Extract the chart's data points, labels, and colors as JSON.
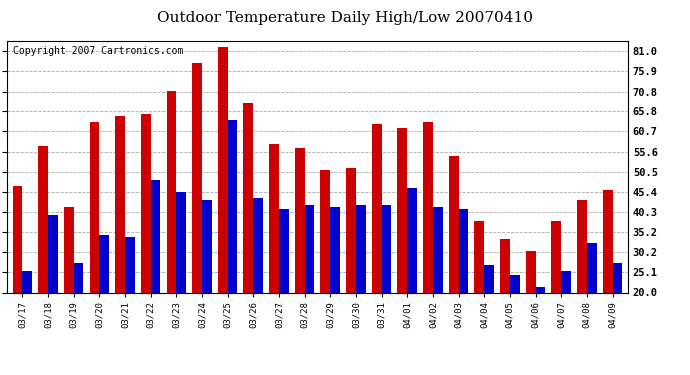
{
  "title": "Outdoor Temperature Daily High/Low 20070410",
  "copyright": "Copyright 2007 Cartronics.com",
  "categories": [
    "03/17",
    "03/18",
    "03/19",
    "03/20",
    "03/21",
    "03/22",
    "03/23",
    "03/24",
    "03/25",
    "03/26",
    "03/27",
    "03/28",
    "03/29",
    "03/30",
    "03/31",
    "04/01",
    "04/02",
    "04/03",
    "04/04",
    "04/05",
    "04/06",
    "04/07",
    "04/08",
    "04/09"
  ],
  "highs": [
    47.0,
    57.0,
    41.5,
    63.0,
    64.5,
    65.0,
    71.0,
    78.0,
    82.0,
    68.0,
    57.5,
    56.5,
    51.0,
    51.5,
    62.5,
    61.5,
    63.0,
    54.5,
    38.0,
    33.5,
    30.5,
    38.0,
    43.5,
    46.0
  ],
  "lows": [
    25.5,
    39.5,
    27.5,
    34.5,
    34.0,
    48.5,
    45.5,
    43.5,
    63.5,
    44.0,
    41.0,
    42.0,
    41.5,
    42.0,
    42.0,
    46.5,
    41.5,
    41.0,
    27.0,
    24.5,
    21.5,
    25.5,
    32.5,
    27.5
  ],
  "high_color": "#cc0000",
  "low_color": "#0000cc",
  "background_color": "#ffffff",
  "plot_background": "#ffffff",
  "grid_color": "#aaaaaa",
  "ytick_labels": [
    "81.0",
    "75.9",
    "70.8",
    "65.8",
    "60.7",
    "55.6",
    "50.5",
    "45.4",
    "40.3",
    "35.2",
    "30.2",
    "25.1",
    "20.0"
  ],
  "ytick_values": [
    81.0,
    75.9,
    70.8,
    65.8,
    60.7,
    55.6,
    50.5,
    45.4,
    40.3,
    35.2,
    30.2,
    25.1,
    20.0
  ],
  "ylim": [
    20.0,
    83.5
  ],
  "title_fontsize": 11,
  "copyright_fontsize": 7
}
